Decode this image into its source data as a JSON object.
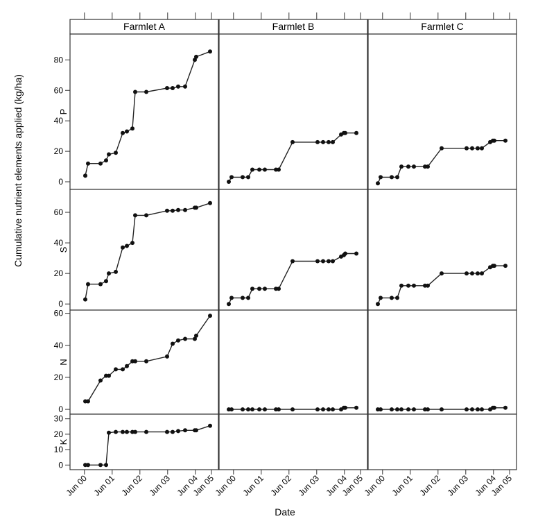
{
  "chart_data": {
    "type": "line",
    "title": "",
    "xlabel": "Date",
    "ylabel": "Cumulative nutrient elements applied (kg/ha)",
    "x_tick_labels": [
      "Jun 00",
      "Jun 01",
      "Jun 02",
      "Jun 03",
      "Jun 04",
      "Jan 05"
    ],
    "x_tick_values": [
      2000.42,
      2001.42,
      2002.42,
      2003.42,
      2004.42,
      2005.0
    ],
    "xlim": [
      1999.9,
      2005.25
    ],
    "columns": [
      "Farmlet A",
      "Farmlet B",
      "Farmlet C"
    ],
    "rows": [
      {
        "name": "P",
        "ylim": [
          -5,
          97
        ],
        "yticks": [
          0,
          20,
          40,
          60,
          80
        ],
        "series": [
          {
            "column": "Farmlet A",
            "x": [
              2000.45,
              2000.55,
              2001.0,
              2001.2,
              2001.3,
              2001.55,
              2001.8,
              2001.95,
              2002.15,
              2002.25,
              2002.65,
              2003.4,
              2003.6,
              2003.8,
              2004.05,
              2004.4,
              2004.45,
              2004.95
            ],
            "y": [
              4,
              12,
              12,
              14,
              18,
              19,
              32,
              33,
              35,
              59,
              59,
              61.5,
              61.5,
              62.5,
              62.5,
              80,
              82,
              85.5
            ]
          },
          {
            "column": "Farmlet B",
            "x": [
              2000.25,
              2000.35,
              2000.75,
              2000.95,
              2001.1,
              2001.35,
              2001.55,
              2001.95,
              2002.05,
              2002.55,
              2003.45,
              2003.65,
              2003.85,
              2004.0,
              2004.3,
              2004.4,
              2004.45,
              2004.85
            ],
            "y": [
              0,
              3,
              3,
              3,
              8,
              8,
              8,
              8,
              8,
              26,
              26,
              26,
              26,
              26,
              31,
              32,
              32,
              32
            ]
          },
          {
            "column": "Farmlet C",
            "x": [
              2000.25,
              2000.35,
              2000.75,
              2000.95,
              2001.1,
              2001.35,
              2001.55,
              2001.95,
              2002.05,
              2002.55,
              2003.45,
              2003.65,
              2003.85,
              2004.0,
              2004.3,
              2004.4,
              2004.45,
              2004.85
            ],
            "y": [
              -1,
              3,
              3,
              3,
              10,
              10,
              10,
              10,
              10,
              22,
              22,
              22,
              22,
              22,
              26,
              27,
              27,
              27
            ]
          }
        ]
      },
      {
        "name": "S",
        "ylim": [
          -4,
          75
        ],
        "yticks": [
          0,
          20,
          40,
          60
        ],
        "series": [
          {
            "column": "Farmlet A",
            "x": [
              2000.45,
              2000.55,
              2001.0,
              2001.2,
              2001.3,
              2001.55,
              2001.8,
              2001.95,
              2002.15,
              2002.25,
              2002.65,
              2003.4,
              2003.6,
              2003.8,
              2004.05,
              2004.4,
              2004.45,
              2004.95
            ],
            "y": [
              3,
              13,
              13,
              15,
              20,
              21,
              37,
              38,
              40,
              58,
              58,
              61,
              61,
              61.5,
              61.5,
              63,
              63,
              66
            ]
          },
          {
            "column": "Farmlet B",
            "x": [
              2000.25,
              2000.35,
              2000.75,
              2000.95,
              2001.1,
              2001.35,
              2001.55,
              2001.95,
              2002.05,
              2002.55,
              2003.45,
              2003.65,
              2003.85,
              2004.0,
              2004.3,
              2004.4,
              2004.45,
              2004.85
            ],
            "y": [
              0,
              4,
              4,
              4,
              10,
              10,
              10,
              10,
              10,
              28,
              28,
              28,
              28,
              28,
              31,
              32,
              33,
              33
            ]
          },
          {
            "column": "Farmlet C",
            "x": [
              2000.25,
              2000.35,
              2000.75,
              2000.95,
              2001.1,
              2001.35,
              2001.55,
              2001.95,
              2002.05,
              2002.55,
              2003.45,
              2003.65,
              2003.85,
              2004.0,
              2004.3,
              2004.4,
              2004.45,
              2004.85
            ],
            "y": [
              0,
              4,
              4,
              4,
              12,
              12,
              12,
              12,
              12,
              20,
              20,
              20,
              20,
              20,
              24,
              25,
              25,
              25
            ]
          }
        ]
      },
      {
        "name": "N",
        "ylim": [
          -3,
          62
        ],
        "yticks": [
          0,
          20,
          40,
          60
        ],
        "series": [
          {
            "column": "Farmlet A",
            "x": [
              2000.45,
              2000.55,
              2001.0,
              2001.2,
              2001.3,
              2001.55,
              2001.8,
              2001.95,
              2002.15,
              2002.25,
              2002.65,
              2003.4,
              2003.6,
              2003.8,
              2004.05,
              2004.4,
              2004.45,
              2004.95
            ],
            "y": [
              5,
              5,
              18,
              21,
              21,
              25,
              25,
              27,
              30,
              30,
              30,
              33,
              41,
              43,
              44,
              44,
              46,
              58.5
            ]
          },
          {
            "column": "Farmlet B",
            "x": [
              2000.25,
              2000.35,
              2000.75,
              2000.95,
              2001.1,
              2001.35,
              2001.55,
              2001.95,
              2002.05,
              2002.55,
              2003.45,
              2003.65,
              2003.85,
              2004.0,
              2004.3,
              2004.4,
              2004.45,
              2004.85
            ],
            "y": [
              0,
              0,
              0,
              0,
              0,
              0,
              0,
              0,
              0,
              0,
              0,
              0,
              0,
              0,
              0,
              1,
              1,
              1
            ]
          },
          {
            "column": "Farmlet C",
            "x": [
              2000.25,
              2000.35,
              2000.75,
              2000.95,
              2001.1,
              2001.35,
              2001.55,
              2001.95,
              2002.05,
              2002.55,
              2003.45,
              2003.65,
              2003.85,
              2004.0,
              2004.3,
              2004.4,
              2004.45,
              2004.85
            ],
            "y": [
              0,
              0,
              0,
              0,
              0,
              0,
              0,
              0,
              0,
              0,
              0,
              0,
              0,
              0,
              0,
              1,
              1,
              1
            ]
          }
        ]
      },
      {
        "name": "K",
        "ylim": [
          -3,
          33
        ],
        "yticks": [
          0,
          10,
          20,
          30
        ],
        "series": [
          {
            "column": "Farmlet A",
            "x": [
              2000.45,
              2000.55,
              2001.0,
              2001.2,
              2001.3,
              2001.55,
              2001.8,
              2001.95,
              2002.15,
              2002.25,
              2002.65,
              2003.4,
              2003.6,
              2003.8,
              2004.05,
              2004.4,
              2004.45,
              2004.95
            ],
            "y": [
              0,
              0,
              0,
              0,
              21,
              21.5,
              21.5,
              21.5,
              21.5,
              21.5,
              21.5,
              21.5,
              21.5,
              22,
              22.5,
              22.5,
              22.5,
              25.5
            ]
          }
        ]
      }
    ],
    "grid": false,
    "legend": "none"
  }
}
